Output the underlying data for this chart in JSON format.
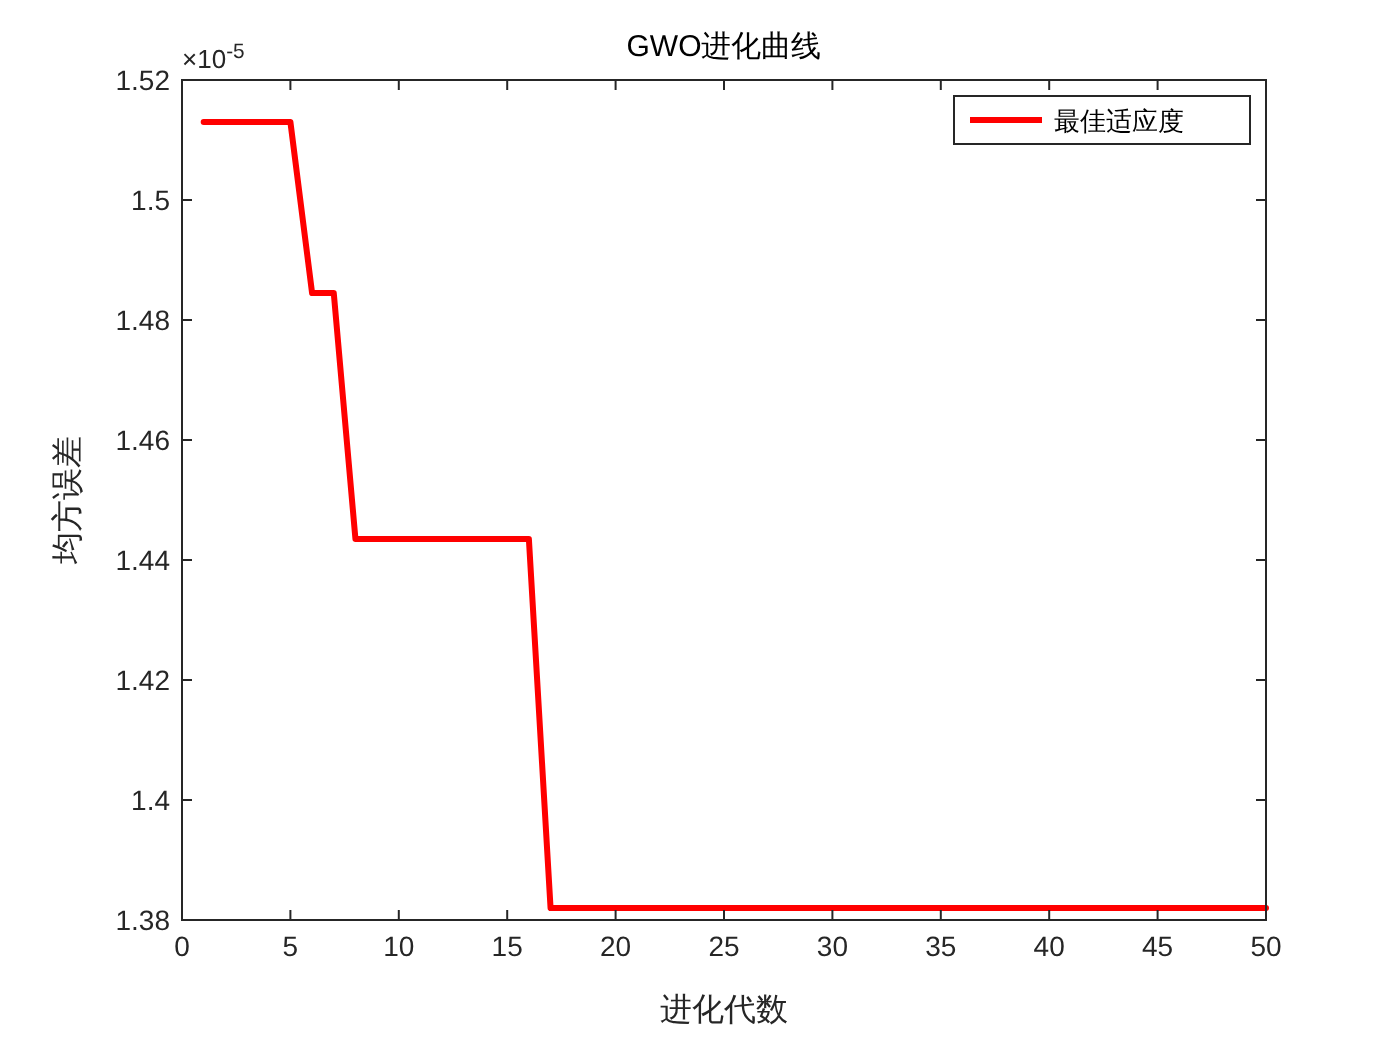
{
  "chart_data": {
    "type": "line",
    "title": "GWO进化曲线",
    "xlabel": "进化代数",
    "ylabel": "均方误差",
    "annotations": [
      "×10$^{-5}$"
    ],
    "x": [
      1,
      5,
      6,
      7,
      8,
      16,
      17,
      50
    ],
    "series": [
      {
        "name": "最佳适应度",
        "color": "#ff0000",
        "values": [
          1.513,
          1.513,
          1.4845,
          1.4845,
          1.4435,
          1.4435,
          1.382,
          1.382
        ]
      }
    ],
    "xlim": [
      0,
      50
    ],
    "xticks": [
      0,
      5,
      10,
      15,
      20,
      25,
      30,
      35,
      40,
      45,
      50
    ],
    "ylim": [
      1.38,
      1.52
    ],
    "yticks": [
      1.38,
      1.4,
      1.42,
      1.44,
      1.46,
      1.48,
      1.5,
      1.52
    ],
    "legend": "top right",
    "marker": "none",
    "line_style": "solid"
  }
}
